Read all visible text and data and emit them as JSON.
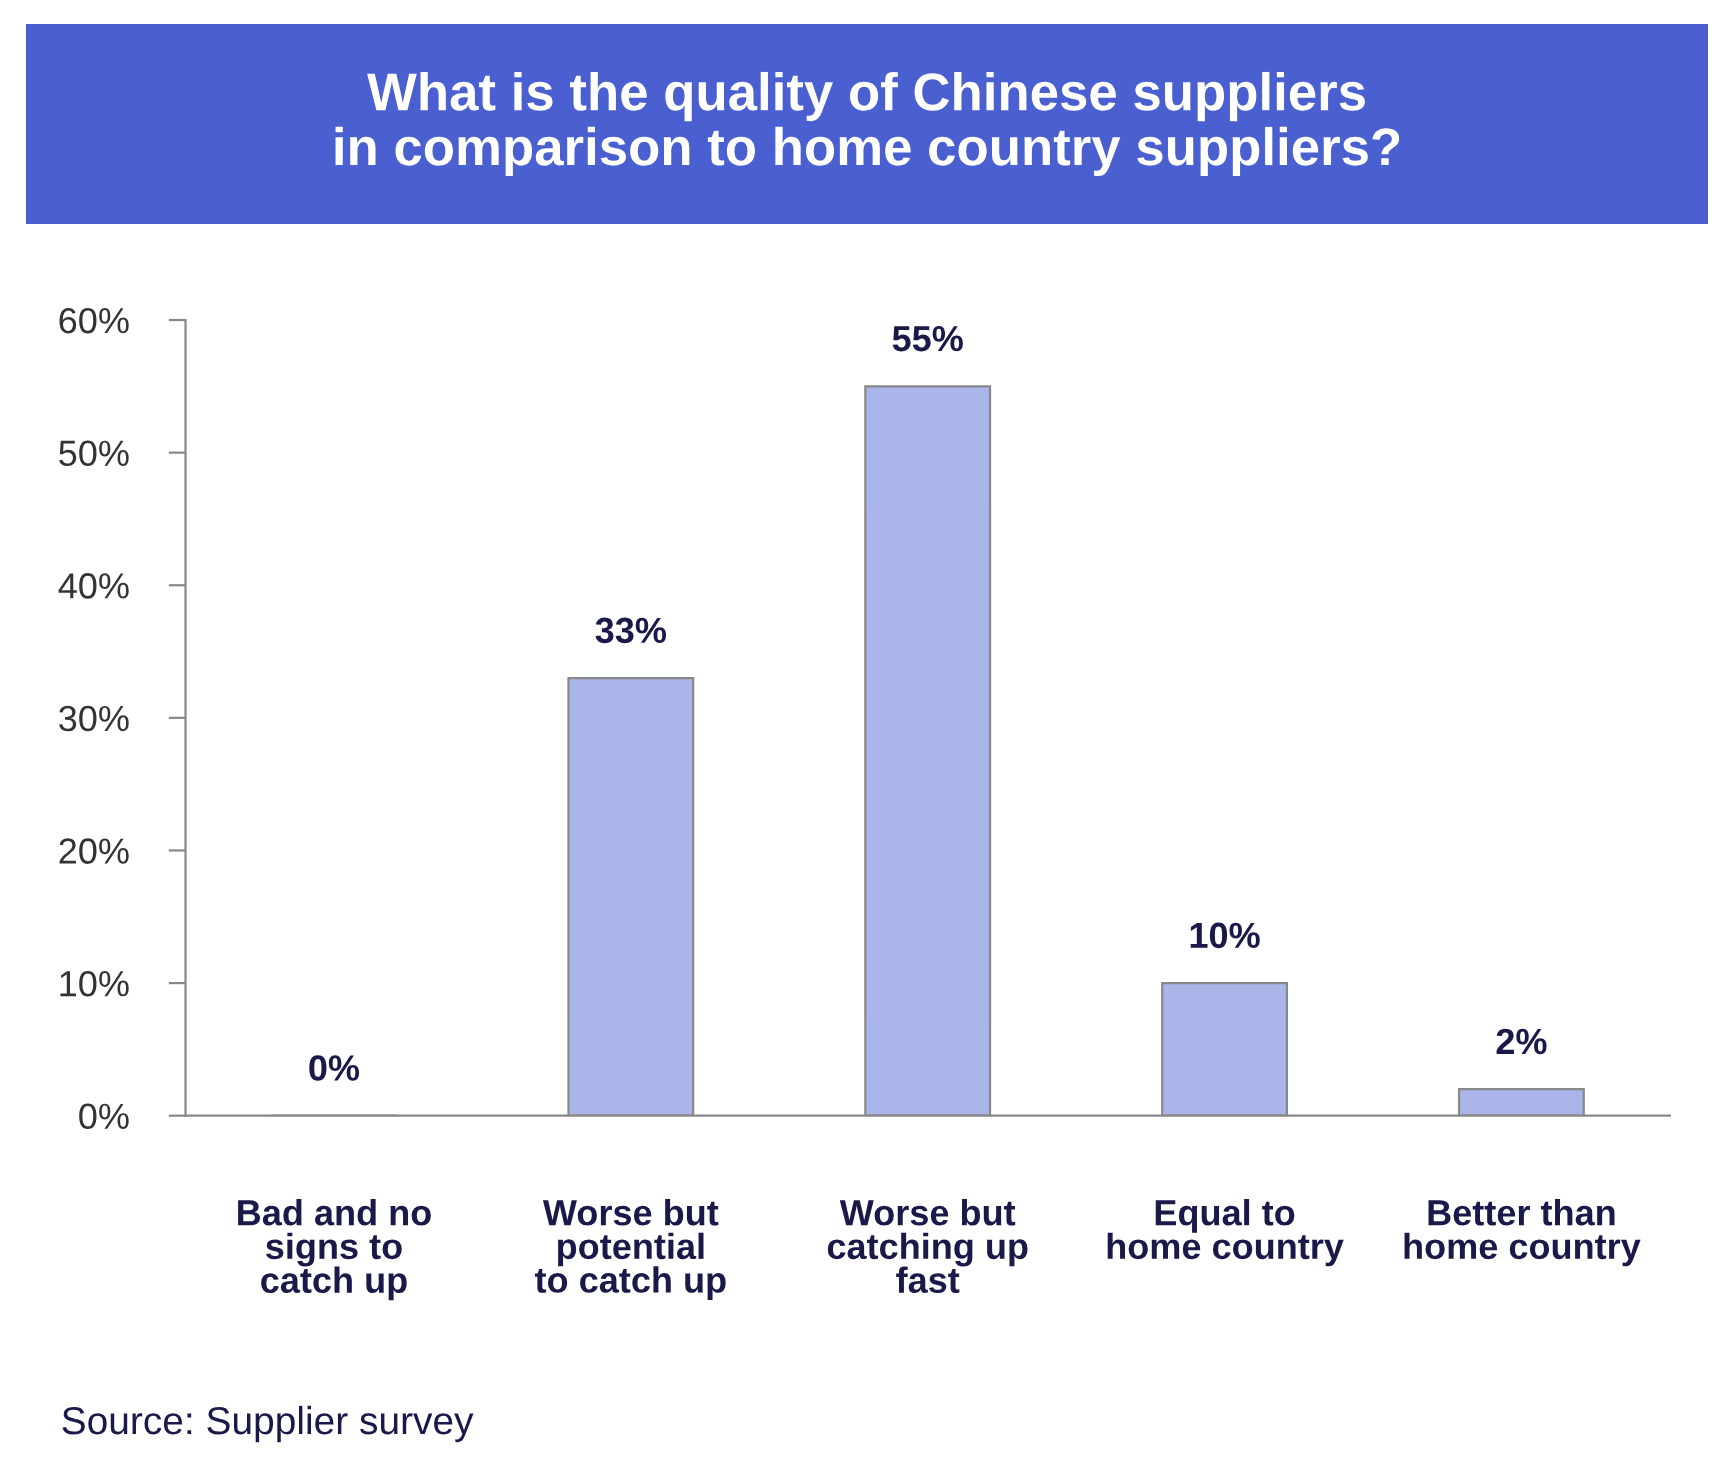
{
  "chart_data": {
    "type": "bar",
    "title": "What is the quality of Chinese suppliers\nin comparison to home country suppliers?",
    "categories": [
      "Bad and no\nsigns to\ncatch up",
      "Worse but\npotential\nto catch up",
      "Worse but\ncatching up\nfast",
      "Equal to\nhome country",
      "Better than\nhome country"
    ],
    "values": [
      0,
      33,
      55,
      10,
      2
    ],
    "value_labels": [
      "0%",
      "33%",
      "55%",
      "10%",
      "2%"
    ],
    "color": "#aab6ea",
    "ylim": [
      0,
      60
    ],
    "yticks": [
      {
        "value": 0,
        "label": "0%"
      },
      {
        "value": 10,
        "label": "10%"
      },
      {
        "value": 20,
        "label": "20%"
      },
      {
        "value": 30,
        "label": "30%"
      },
      {
        "value": 40,
        "label": "40%"
      },
      {
        "value": 50,
        "label": "50%"
      },
      {
        "value": 60,
        "label": "60%"
      }
    ],
    "grid": false,
    "legend": false,
    "annotations": [
      "Source: Supplier survey"
    ]
  }
}
